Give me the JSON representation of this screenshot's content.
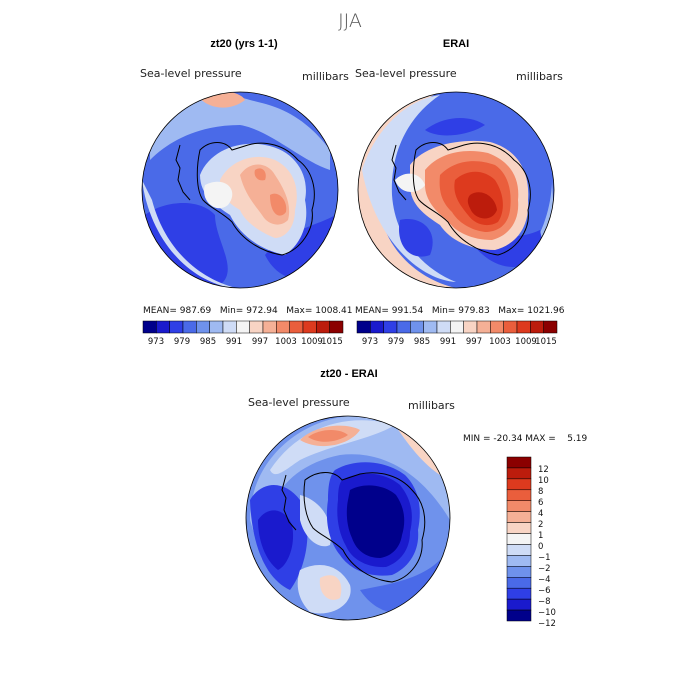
{
  "page_title": "JJA",
  "colors": {
    "top_scale": [
      "#00008b",
      "#1a1acd",
      "#2f3fe6",
      "#4a6ae8",
      "#6f92ec",
      "#9fbaf2",
      "#cfdcf6",
      "#f4f4f4",
      "#f8d4c4",
      "#f5b096",
      "#f28a69",
      "#ea5e3c",
      "#dd3a1e",
      "#bc1c0c",
      "#8b0000"
    ],
    "diff_scale": [
      "#00008b",
      "#1a1acd",
      "#2f3fe6",
      "#4a6ae8",
      "#6f92ec",
      "#9fbaf2",
      "#cfdcf6",
      "#f4f4f4",
      "#f8d4c4",
      "#f5b096",
      "#f28a69",
      "#ea5e3c",
      "#dd3a1e",
      "#bc1c0c",
      "#8b0000"
    ]
  },
  "chart_data": [
    {
      "type": "heatmap",
      "panel": "left",
      "title": "zt20 (yrs 1-1)",
      "variable": "Sea-level pressure",
      "units": "millibars",
      "stats": "MEAN= 987.69   Min= 972.94   Max= 1008.41",
      "mean": 987.69,
      "min": 972.94,
      "max": 1008.41,
      "colorbar_ticks": [
        "973",
        "979",
        "985",
        "991",
        "997",
        "1003",
        "1009",
        "1015"
      ],
      "colorbar_levels": 15
    },
    {
      "type": "heatmap",
      "panel": "right",
      "title": "ERAI",
      "variable": "Sea-level pressure",
      "units": "millibars",
      "stats": "MEAN= 991.54   Min= 979.83   Max= 1021.96",
      "mean": 991.54,
      "min": 979.83,
      "max": 1021.96,
      "colorbar_ticks": [
        "973",
        "979",
        "985",
        "991",
        "997",
        "1003",
        "1009",
        "1015"
      ],
      "colorbar_levels": 15
    },
    {
      "type": "heatmap",
      "panel": "difference",
      "title": "zt20 - ERAI",
      "variable": "Sea-level pressure",
      "units": "millibars",
      "stats": "MIN = -20.34 MAX =    5.19",
      "min": -20.34,
      "max": 5.19,
      "colorbar_ticks": [
        "12",
        "10",
        "8",
        "6",
        "4",
        "2",
        "1",
        "0",
        "−1",
        "−2",
        "−4",
        "−6",
        "−8",
        "−10",
        "−12"
      ]
    }
  ]
}
